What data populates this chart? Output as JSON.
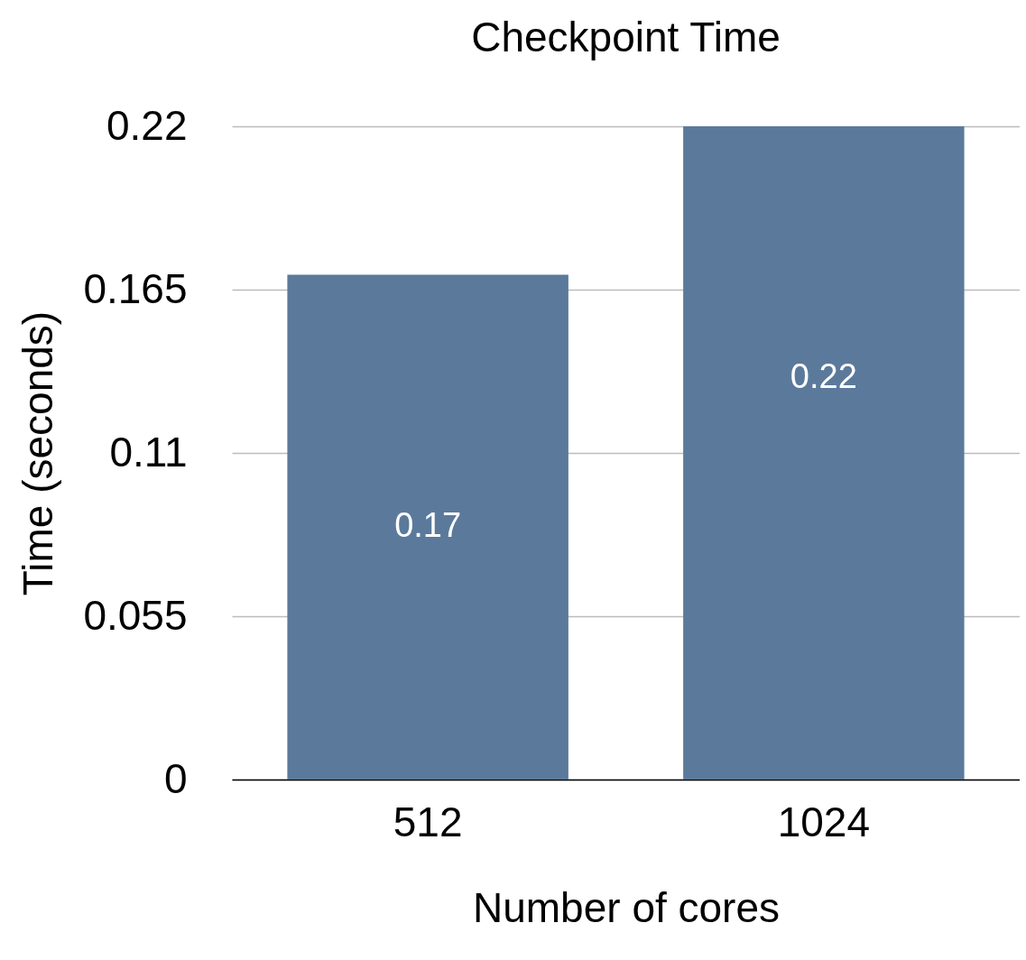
{
  "chart_data": {
    "type": "bar",
    "title": "Checkpoint Time",
    "xlabel": "Number of cores",
    "ylabel": "Time (seconds)",
    "categories": [
      "512",
      "1024"
    ],
    "values": [
      0.17,
      0.22
    ],
    "color": "#5b7a9b",
    "ylim": [
      0,
      0.22
    ],
    "yticks": [
      0,
      0.055,
      0.11,
      0.165,
      0.22
    ],
    "grid": "y",
    "data_labels": true
  }
}
